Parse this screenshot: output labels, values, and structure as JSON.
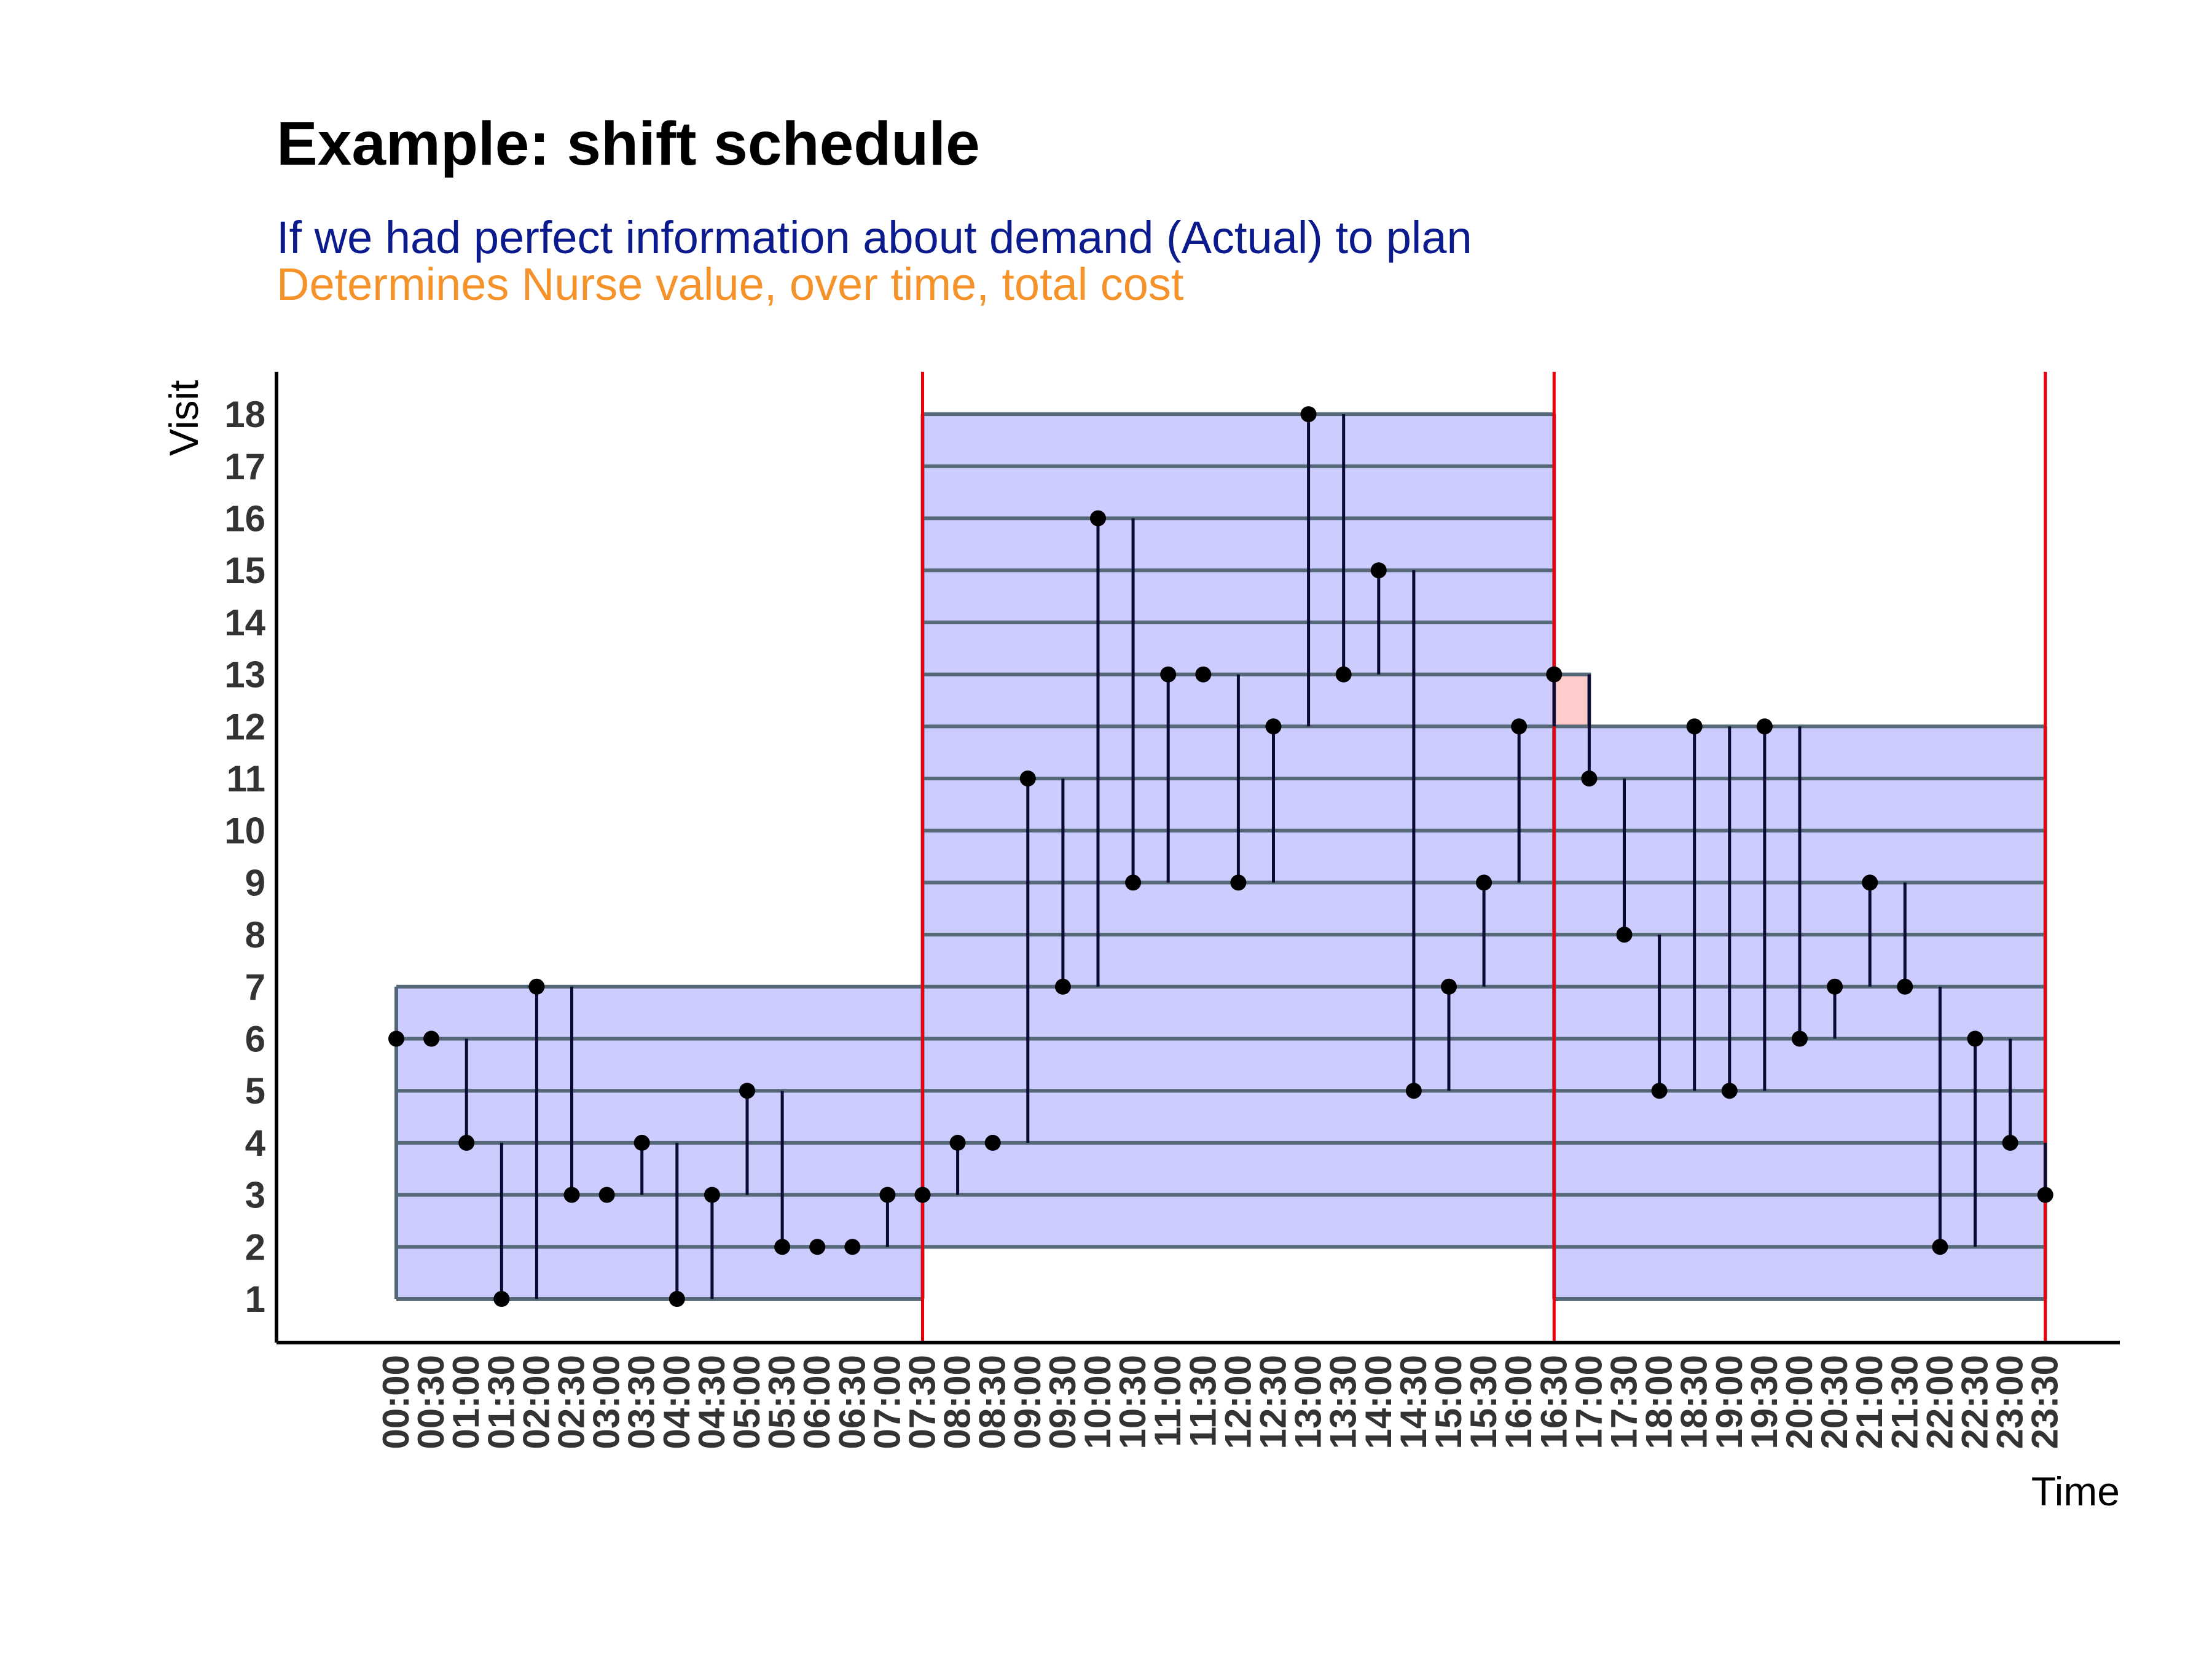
{
  "colors": {
    "title": "#000000",
    "subtitle_1": "#0B1A8C",
    "subtitle_2": "#F5922A",
    "shift_fill": "#CCCCFF",
    "shift_edge": "#546878",
    "overtime_fill": "#FFCCCC",
    "shift_boundary": "#E8000B",
    "demand_line": "#0A0A33",
    "demand_point": "#000000",
    "axis": "#000000"
  },
  "chart_data": {
    "type": "scatter",
    "title": "Example: shift schedule",
    "subtitles": [
      "If we had perfect information about demand (Actual) to plan",
      "Determines Nurse value, over time, total cost"
    ],
    "xlabel": "Time",
    "ylabel": "Visit",
    "x_ticks": [
      "00:00",
      "00:30",
      "01:00",
      "01:30",
      "02:00",
      "02:30",
      "03:00",
      "03:30",
      "04:00",
      "04:30",
      "05:00",
      "05:30",
      "06:00",
      "06:30",
      "07:00",
      "07:30",
      "08:00",
      "08:30",
      "09:00",
      "09:30",
      "10:00",
      "10:30",
      "11:00",
      "11:30",
      "12:00",
      "12:30",
      "13:00",
      "13:30",
      "14:00",
      "14:30",
      "15:00",
      "15:30",
      "16:00",
      "16:30",
      "17:00",
      "17:30",
      "18:00",
      "18:30",
      "19:00",
      "19:30",
      "20:00",
      "20:30",
      "21:00",
      "21:30",
      "22:00",
      "22:30",
      "23:00",
      "23:30"
    ],
    "y_ticks": [
      1,
      2,
      3,
      4,
      5,
      6,
      7,
      8,
      9,
      10,
      11,
      12,
      13,
      14,
      15,
      16,
      17,
      18
    ],
    "ylim": [
      0.2,
      18.8
    ],
    "demand": {
      "name": "Actual",
      "time": [
        "00:00",
        "00:30",
        "01:00",
        "01:30",
        "02:00",
        "02:30",
        "03:00",
        "03:30",
        "04:00",
        "04:30",
        "05:00",
        "05:30",
        "06:00",
        "06:30",
        "07:00",
        "07:30",
        "08:00",
        "08:30",
        "09:00",
        "09:30",
        "10:00",
        "10:30",
        "11:00",
        "11:30",
        "12:00",
        "12:30",
        "13:00",
        "13:30",
        "14:00",
        "14:30",
        "15:00",
        "15:30",
        "16:00",
        "16:30",
        "17:00",
        "17:30",
        "18:00",
        "18:30",
        "19:00",
        "19:30",
        "20:00",
        "20:30",
        "21:00",
        "21:30",
        "22:00",
        "22:30",
        "23:00",
        "23:30"
      ],
      "visits": [
        6,
        6,
        4,
        1,
        7,
        3,
        3,
        4,
        1,
        3,
        5,
        2,
        2,
        2,
        3,
        3,
        4,
        4,
        11,
        7,
        16,
        9,
        13,
        13,
        9,
        12,
        18,
        13,
        15,
        5,
        7,
        9,
        12,
        13,
        11,
        8,
        5,
        12,
        5,
        12,
        6,
        7,
        9,
        7,
        2,
        6,
        4,
        3
      ]
    },
    "shifts": [
      {
        "start": "00:00",
        "end": "07:30",
        "min_visit": 1,
        "max_visit": 7
      },
      {
        "start": "07:30",
        "end": "16:30",
        "min_visit": 2,
        "max_visit": 18
      },
      {
        "start": "16:30",
        "end": "23:30",
        "min_visit": 1,
        "max_visit": 12
      }
    ],
    "overtime": [
      {
        "start": "16:30",
        "end": "17:00",
        "min_visit": 12,
        "max_visit": 13
      }
    ],
    "shift_boundaries": [
      "07:30",
      "16:30",
      "23:30"
    ],
    "grid": false
  }
}
